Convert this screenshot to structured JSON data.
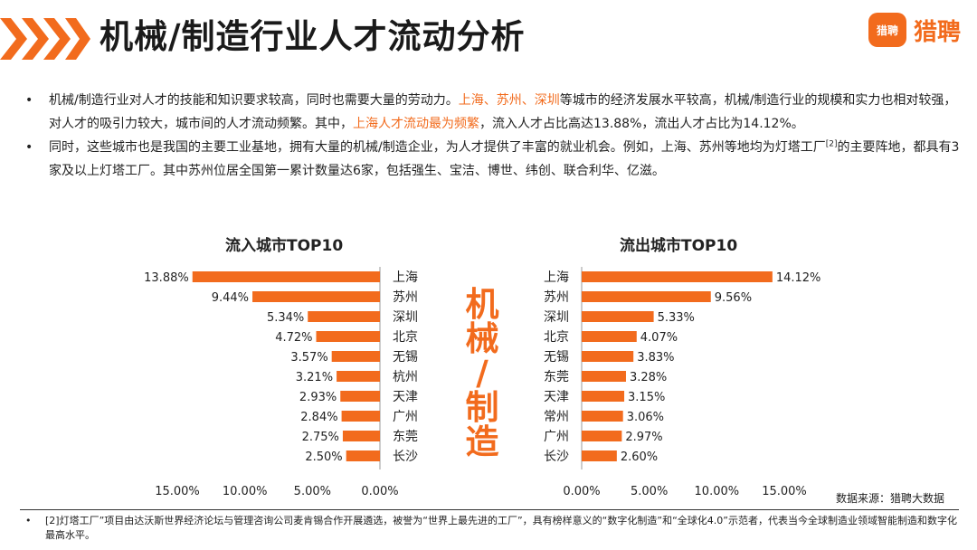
{
  "header": {
    "title": "机械/制造行业人才流动分析",
    "logo_icon": "liepin-logo-icon",
    "logo_badge": "猎聘",
    "logo_text": "猎聘",
    "accent_color": "#f26b1d"
  },
  "bullets": [
    {
      "dot": "•",
      "a": "机械/制造行业对人才的技能和知识要求较高，同时也需要大量的劳动力。",
      "hl1": "上海、苏州、深圳",
      "b": "等城市的经济发展水平较高，机械/制造行业的规模和实力也相对较强，对人才的吸引力较大，城市间的人才流动频繁。其中，",
      "hl2": "上海人才流动最为频繁",
      "c": "，流入人才占比高达13.88%，流出人才占比为14.12%。"
    },
    {
      "dot": "•",
      "a": "同时，这些城市也是我国的主要工业基地，拥有大量的机械/制造企业，为人才提供了丰富的就业机会。例如，上海、苏州等地均为灯塔工厂",
      "sup": "[2]",
      "b": "的主要阵地，都具有3家及以上灯塔工厂。其中苏州位居全国第一累计数量达6家，包括强生、宝洁、博世、纬创、联合利华、亿滋。"
    }
  ],
  "center_label": [
    "机",
    "械",
    "/",
    "制",
    "造"
  ],
  "source": "数据来源：猎聘大数据",
  "footnote": {
    "dot": "•",
    "text": "[2]灯塔工厂”项目由达沃斯世界经济论坛与管理咨询公司麦肯锡合作开展遴选，被誉为“世界上最先进的工厂”，具有榜样意义的“数字化制造”和“全球化4.0”示范者，代表当今全球制造业领域智能制造和数字化最高水平。"
  },
  "chart_data": [
    {
      "type": "bar",
      "orientation": "horizontal",
      "direction": "right-to-left",
      "title": "流入城市TOP10",
      "categories": [
        "上海",
        "苏州",
        "深圳",
        "北京",
        "无锡",
        "杭州",
        "天津",
        "广州",
        "东莞",
        "长沙"
      ],
      "values": [
        13.88,
        9.44,
        5.34,
        4.72,
        3.57,
        3.21,
        2.93,
        2.84,
        2.75,
        2.5
      ],
      "value_labels": [
        "13.88%",
        "9.44%",
        "5.34%",
        "4.72%",
        "3.57%",
        "3.21%",
        "2.93%",
        "2.84%",
        "2.75%",
        "2.50%"
      ],
      "xlim": [
        0,
        15
      ],
      "xticks": [
        "15.00%",
        "10.00%",
        "5.00%",
        "0.00%"
      ],
      "color": "#f26b1d",
      "grid": false
    },
    {
      "type": "bar",
      "orientation": "horizontal",
      "direction": "left-to-right",
      "title": "流出城市TOP10",
      "categories": [
        "上海",
        "苏州",
        "深圳",
        "北京",
        "无锡",
        "东莞",
        "天津",
        "常州",
        "广州",
        "长沙"
      ],
      "values": [
        14.12,
        9.56,
        5.33,
        4.07,
        3.83,
        3.28,
        3.15,
        3.06,
        2.97,
        2.6
      ],
      "value_labels": [
        "14.12%",
        "9.56%",
        "5.33%",
        "4.07%",
        "3.83%",
        "3.28%",
        "3.15%",
        "3.06%",
        "2.97%",
        "2.60%"
      ],
      "xlim": [
        0,
        15
      ],
      "xticks": [
        "0.00%",
        "5.00%",
        "10.00%",
        "15.00%"
      ],
      "color": "#f26b1d",
      "grid": false
    }
  ]
}
